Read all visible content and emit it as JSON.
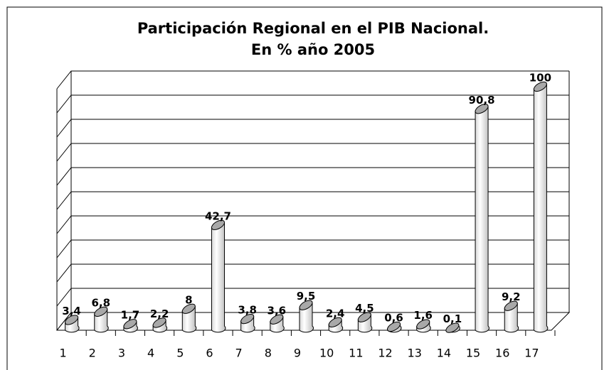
{
  "chart_data": {
    "type": "bar",
    "title": "Participación Regional en el PIB Nacional.",
    "subtitle": "En % año 2005",
    "categories": [
      "1",
      "2",
      "3",
      "4",
      "5",
      "6",
      "7",
      "8",
      "9",
      "10",
      "11",
      "12",
      "13",
      "14",
      "15",
      "16",
      "17"
    ],
    "values": [
      3.4,
      6.8,
      1.7,
      2.2,
      8,
      42.7,
      3.8,
      3.6,
      9.5,
      2.4,
      4.5,
      0.6,
      1.6,
      0.1,
      90.8,
      9.2,
      100
    ],
    "value_labels": [
      "3,4",
      "6,8",
      "1,7",
      "2,2",
      "8",
      "42,7",
      "3,8",
      "3,6",
      "9,5",
      "2,4",
      "4,5",
      "0,6",
      "1,6",
      "0,1",
      "90,8",
      "9,2",
      "100"
    ],
    "color": "#ffffff",
    "ylim": [
      0,
      100
    ],
    "yticks": [
      0,
      10,
      20,
      30,
      40,
      50,
      60,
      70,
      80,
      90,
      100
    ],
    "grid": true
  }
}
